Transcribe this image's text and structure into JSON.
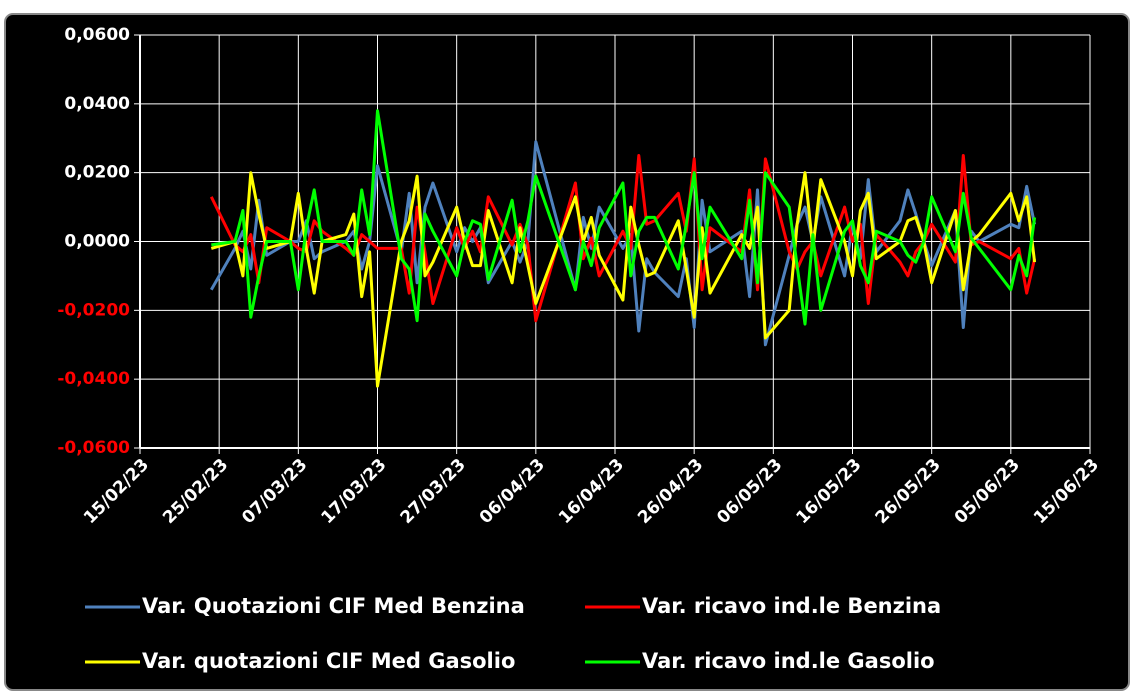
{
  "chart_data": {
    "type": "line",
    "x": [
      "24/02/23",
      "27/02/23",
      "28/02/23",
      "01/03/23",
      "02/03/23",
      "03/03/23",
      "06/03/23",
      "07/03/23",
      "08/03/23",
      "09/03/23",
      "10/03/23",
      "13/03/23",
      "14/03/23",
      "15/03/23",
      "16/03/23",
      "17/03/23",
      "20/03/23",
      "21/03/23",
      "22/03/23",
      "23/03/23",
      "24/03/23",
      "27/03/23",
      "28/03/23",
      "29/03/23",
      "30/03/23",
      "31/03/23",
      "03/04/23",
      "04/04/23",
      "05/04/23",
      "06/04/23",
      "11/04/23",
      "12/04/23",
      "13/04/23",
      "14/04/23",
      "17/04/23",
      "18/04/23",
      "19/04/23",
      "20/04/23",
      "21/04/23",
      "24/04/23",
      "25/04/23",
      "26/04/23",
      "27/04/23",
      "28/04/23",
      "02/05/23",
      "03/05/23",
      "04/05/23",
      "05/05/23",
      "08/05/23",
      "09/05/23",
      "10/05/23",
      "11/05/23",
      "12/05/23",
      "15/05/23",
      "16/05/23",
      "17/05/23",
      "18/05/23",
      "19/05/23",
      "22/05/23",
      "23/05/23",
      "24/05/23",
      "25/05/23",
      "26/05/23",
      "29/05/23",
      "30/05/23",
      "31/05/23",
      "01/06/23",
      "05/06/23",
      "06/06/23",
      "07/06/23",
      "08/06/23"
    ],
    "series": [
      {
        "name": "Var. Quotazioni CIF Med Benzina",
        "color": "#4f81bd",
        "values": [
          -0.014,
          -0.002,
          0.003,
          -0.008,
          0.012,
          -0.004,
          0,
          0,
          0.006,
          -0.005,
          -0.003,
          0,
          0.003,
          -0.008,
          0,
          0.022,
          -0.003,
          0.014,
          -0.012,
          0.01,
          0.017,
          -0.003,
          0.004,
          0,
          0.004,
          -0.012,
          0,
          -0.006,
          0,
          0.029,
          -0.014,
          0.007,
          -0.002,
          0.01,
          -0.002,
          0.002,
          -0.026,
          -0.005,
          -0.009,
          -0.016,
          -0.005,
          -0.025,
          0.012,
          -0.003,
          0.003,
          -0.016,
          0.015,
          -0.03,
          -0.004,
          0.005,
          0.01,
          0,
          0.013,
          -0.01,
          0.005,
          -0.005,
          0.018,
          -0.003,
          0.006,
          0.015,
          0.008,
          0,
          -0.007,
          0.009,
          -0.025,
          0.003,
          0,
          0.005,
          0.004,
          0.016,
          0.005
        ]
      },
      {
        "name": "Var. ricavo ind.le Benzina",
        "color": "#ff0000",
        "values": [
          0.013,
          -0.001,
          -0.003,
          0.002,
          -0.012,
          0.004,
          0,
          -0.002,
          -0.003,
          0.006,
          0.003,
          -0.002,
          -0.004,
          0.002,
          0,
          -0.002,
          -0.002,
          -0.015,
          0.01,
          -0.003,
          -0.018,
          0.004,
          -0.002,
          0.003,
          -0.003,
          0.013,
          -0.001,
          0.005,
          -0.001,
          -0.023,
          0.017,
          -0.005,
          0.001,
          -0.01,
          0.003,
          -0.002,
          0.025,
          0.005,
          0.006,
          0.014,
          0.003,
          0.024,
          -0.014,
          0.004,
          -0.003,
          0.015,
          -0.014,
          0.024,
          -0.003,
          -0.008,
          -0.003,
          0,
          -0.01,
          0.01,
          0,
          0.005,
          -0.018,
          0.002,
          -0.006,
          -0.01,
          -0.003,
          0,
          0.005,
          -0.006,
          0.025,
          -0.001,
          0,
          -0.005,
          -0.002,
          -0.015,
          -0.005
        ]
      },
      {
        "name": "Var. quotazioni CIF Med Gasolio",
        "color": "#ffff00",
        "values": [
          -0.002,
          0,
          -0.01,
          0.02,
          0.008,
          -0.002,
          0,
          0.014,
          -0.002,
          -0.015,
          0,
          0.002,
          0.008,
          -0.016,
          -0.003,
          -0.042,
          0,
          0.006,
          0.019,
          -0.01,
          -0.006,
          0.01,
          0,
          -0.007,
          -0.007,
          0.009,
          -0.012,
          0.004,
          -0.007,
          -0.018,
          0.013,
          0,
          0.007,
          -0.004,
          -0.017,
          0.01,
          -0.001,
          -0.01,
          -0.009,
          0.006,
          -0.008,
          -0.022,
          0.004,
          -0.015,
          0.002,
          -0.002,
          0.01,
          -0.028,
          -0.02,
          0.005,
          0.02,
          -0.002,
          0.018,
          0,
          -0.01,
          0.009,
          0.014,
          -0.005,
          0,
          0.006,
          0.007,
          0,
          -0.012,
          0.009,
          -0.014,
          0,
          0.002,
          0.014,
          0.006,
          0.013,
          -0.006
        ]
      },
      {
        "name": "Var. ricavo ind.le Gasolio",
        "color": "#00ff00",
        "values": [
          -0.001,
          0,
          0.009,
          -0.022,
          -0.01,
          0,
          0,
          -0.014,
          0.004,
          0.015,
          0,
          0,
          -0.004,
          0.015,
          0.002,
          0.038,
          -0.005,
          -0.008,
          -0.023,
          0.008,
          0.003,
          -0.01,
          0,
          0.006,
          0.005,
          -0.011,
          0.012,
          -0.003,
          0.006,
          0.019,
          -0.014,
          0,
          -0.007,
          0.004,
          0.017,
          -0.01,
          0.003,
          0.007,
          0.007,
          -0.008,
          0.005,
          0.02,
          -0.005,
          0.01,
          -0.005,
          0.012,
          -0.012,
          0.02,
          0.01,
          -0.007,
          -0.024,
          0.002,
          -0.02,
          0.003,
          0.006,
          -0.007,
          -0.012,
          0.003,
          0,
          -0.004,
          -0.006,
          0,
          0.013,
          -0.003,
          0.014,
          0.001,
          -0.002,
          -0.014,
          -0.004,
          -0.01,
          0.007
        ]
      }
    ],
    "xlim": [
      "15/02/23",
      "15/06/23"
    ],
    "xticks": [
      "15/02/23",
      "25/02/23",
      "07/03/23",
      "17/03/23",
      "27/03/23",
      "06/04/23",
      "16/04/23",
      "26/04/23",
      "06/05/23",
      "16/05/23",
      "26/05/23",
      "05/06/23",
      "15/06/23"
    ],
    "ylim": [
      -0.06,
      0.06
    ],
    "yticks": [
      {
        "value": -0.06,
        "label": "-0,0600"
      },
      {
        "value": -0.04,
        "label": "-0,0400"
      },
      {
        "value": -0.02,
        "label": "-0,0200"
      },
      {
        "value": 0,
        "label": "0,0000"
      },
      {
        "value": 0.02,
        "label": "0,0200"
      },
      {
        "value": 0.04,
        "label": "0,0400"
      },
      {
        "value": 0.06,
        "label": "0,0600"
      }
    ],
    "grid": true,
    "legend": "bottom"
  }
}
